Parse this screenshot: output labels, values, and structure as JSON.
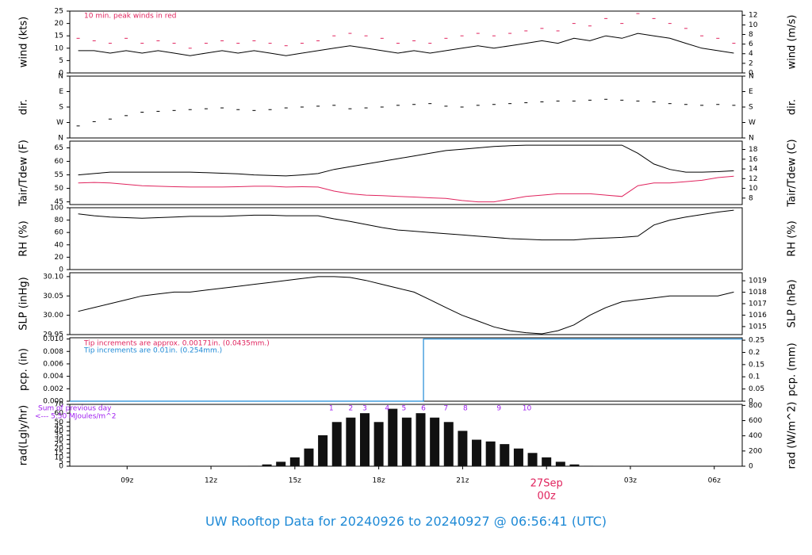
{
  "title": "UW Rooftop Data for 20240926  to  20240927 @ 06:56:41  (UTC)",
  "colors": {
    "red": "#e0245e",
    "blue": "#1f8ad6",
    "purple": "#a020f0",
    "black": "#000000"
  },
  "x_axis": {
    "ticks": [
      "09z",
      "12z",
      "15z",
      "18z",
      "21z",
      "00z",
      "03z",
      "06z"
    ],
    "date_label": "27Sep",
    "date_sub": "00z"
  },
  "chart_data": [
    {
      "type": "line",
      "key": "wind",
      "ylabel": "wind (kts)",
      "ylabel_right": "wind (m/s)",
      "ylim": [
        0,
        25
      ],
      "yticks": [
        0,
        5,
        10,
        15,
        20,
        25
      ],
      "ylim_right": [
        0,
        12.86
      ],
      "yticks_right": [
        0,
        2,
        4,
        6,
        8,
        10,
        12
      ],
      "annotation": "10 min. peak winds in red",
      "series": [
        {
          "name": "",
          "color": "#000000",
          "style": "line",
          "values": [
            9,
            9,
            8,
            9,
            8,
            9,
            8,
            7,
            8,
            9,
            8,
            9,
            8,
            7,
            8,
            9,
            10,
            11,
            10,
            9,
            8,
            9,
            8,
            9,
            10,
            11,
            10,
            11,
            12,
            13,
            12,
            14,
            13,
            15,
            14,
            16,
            15,
            14,
            12,
            10,
            9,
            8
          ]
        },
        {
          "name": "",
          "color": "#e0245e",
          "style": "dash",
          "values": [
            14,
            13,
            12,
            14,
            12,
            13,
            12,
            10,
            12,
            13,
            12,
            13,
            12,
            11,
            12,
            13,
            15,
            16,
            15,
            14,
            12,
            13,
            12,
            14,
            15,
            16,
            15,
            16,
            17,
            18,
            17,
            20,
            19,
            22,
            20,
            24,
            22,
            20,
            18,
            15,
            14,
            12
          ]
        }
      ]
    },
    {
      "type": "scatter",
      "key": "dir",
      "ylabel": "dir.",
      "ylabel_right": "dir.",
      "yticks_labels": [
        "N",
        "E",
        "S",
        "W",
        "N"
      ],
      "ylim": [
        0,
        360
      ],
      "series": [
        {
          "name": "",
          "color": "#000000",
          "style": "dash",
          "values": [
            70,
            95,
            110,
            130,
            150,
            155,
            160,
            165,
            170,
            175,
            165,
            160,
            165,
            175,
            180,
            185,
            190,
            170,
            175,
            180,
            190,
            195,
            200,
            185,
            180,
            190,
            195,
            200,
            205,
            210,
            215,
            215,
            220,
            225,
            220,
            215,
            210,
            200,
            195,
            190,
            195,
            190
          ]
        }
      ]
    },
    {
      "type": "line",
      "key": "temp",
      "ylabel": "Tair/Tdew (F)",
      "ylabel_right": "Tair/Tdew (C)",
      "ylim": [
        44,
        67.5
      ],
      "yticks": [
        45,
        50,
        55,
        60,
        65
      ],
      "ylim_right": [
        6.67,
        19.72
      ],
      "yticks_right": [
        8,
        10,
        12,
        14,
        16,
        18
      ],
      "series": [
        {
          "name": "",
          "color": "#000000",
          "style": "line",
          "values": [
            55,
            55.5,
            56,
            56,
            56,
            56,
            56,
            56,
            55.8,
            55.6,
            55.4,
            55,
            54.8,
            54.6,
            55,
            55.5,
            57,
            58,
            59,
            60,
            61,
            62,
            63,
            64,
            64.5,
            65,
            65.5,
            65.8,
            66,
            66,
            66,
            66,
            66,
            66,
            66,
            63,
            59,
            57,
            56,
            56,
            56.2,
            56.5
          ]
        },
        {
          "name": "",
          "color": "#e0245e",
          "style": "line",
          "values": [
            52,
            52.2,
            52,
            51.5,
            51,
            50.8,
            50.6,
            50.5,
            50.5,
            50.5,
            50.6,
            50.8,
            50.8,
            50.5,
            50.6,
            50.5,
            49,
            48,
            47.5,
            47.3,
            47,
            46.8,
            46.5,
            46.3,
            45.5,
            45,
            45,
            46,
            47,
            47.5,
            48,
            48,
            48,
            47.5,
            47,
            51,
            52,
            52,
            52.5,
            53,
            54,
            54.5
          ]
        }
      ]
    },
    {
      "type": "line",
      "key": "rh",
      "ylabel": "RH (%)",
      "ylabel_right": "RH (%)",
      "ylim": [
        0,
        100
      ],
      "yticks": [
        0,
        20,
        40,
        60,
        80,
        100
      ],
      "series": [
        {
          "name": "",
          "color": "#000000",
          "style": "line",
          "values": [
            90,
            87,
            85,
            84,
            83,
            84,
            85,
            86,
            86,
            86,
            87,
            88,
            88,
            87,
            87,
            87,
            82,
            78,
            73,
            68,
            64,
            62,
            60,
            58,
            56,
            54,
            52,
            50,
            49,
            48,
            48,
            48,
            50,
            51,
            52,
            54,
            72,
            80,
            85,
            89,
            93,
            96
          ]
        }
      ]
    },
    {
      "type": "line",
      "key": "slp",
      "ylabel": "SLP (inHg)",
      "ylabel_right": "SLP (hPa)",
      "ylim": [
        29.95,
        30.11
      ],
      "yticks": [
        29.95,
        30.0,
        30.05,
        30.1
      ],
      "ytick_labels": [
        "29.95",
        "30.00",
        "30.05",
        "30.10"
      ],
      "ylim_right": [
        1014.3,
        1019.7
      ],
      "yticks_right": [
        1015,
        1016,
        1017,
        1018,
        1019
      ],
      "series": [
        {
          "name": "",
          "color": "#000000",
          "style": "line",
          "values": [
            30.01,
            30.02,
            30.03,
            30.04,
            30.05,
            30.055,
            30.06,
            30.06,
            30.065,
            30.07,
            30.075,
            30.08,
            30.085,
            30.09,
            30.095,
            30.1,
            30.1,
            30.098,
            30.09,
            30.08,
            30.07,
            30.06,
            30.04,
            30.02,
            30.0,
            29.985,
            29.97,
            29.96,
            29.955,
            29.952,
            29.96,
            29.975,
            30.0,
            30.02,
            30.035,
            30.04,
            30.045,
            30.05,
            30.05,
            30.05,
            30.05,
            30.06
          ]
        }
      ]
    },
    {
      "type": "line",
      "key": "pcp",
      "ylabel": "pcp. (in)",
      "ylabel_right": "pcp. (mm)",
      "ylim": [
        0,
        0.0102
      ],
      "yticks": [
        0,
        0.002,
        0.004,
        0.006,
        0.008,
        0.01
      ],
      "ytick_labels": [
        "0.000",
        "0.002",
        "0.004",
        "0.006",
        "0.008",
        "0.010"
      ],
      "ylim_right": [
        0,
        0.26
      ],
      "yticks_right": [
        0,
        0.05,
        0.1,
        0.15,
        0.2,
        0.25
      ],
      "ytick_labels_right": [
        "0",
        "0.05",
        "0.1",
        "0.15",
        "0.2",
        "0.25"
      ],
      "step_at_hour": 19.6,
      "before": 0,
      "after": 0.01,
      "annotations": [
        {
          "text": "Tip increments are approx. 0.00171in. (0.0435mm.)",
          "color": "#e0245e"
        },
        {
          "text": "Tip increments are 0.01in. (0.254mm.)",
          "color": "#1f8ad6"
        }
      ]
    },
    {
      "type": "bar",
      "key": "rad",
      "ylabel": "rad(Lgly/hr)",
      "ylabel_right": "rad (W/m^2)",
      "ylim": [
        0,
        70
      ],
      "yticks": [
        0,
        5,
        10,
        15,
        20,
        25,
        30,
        35,
        40,
        45,
        50,
        60,
        70
      ],
      "ylim_right": [
        0,
        813.9
      ],
      "yticks_right": [
        0,
        200,
        400,
        600,
        800
      ],
      "annotation_lines": [
        "Sum of previous day",
        "<--- 5.50 MJoules/m^2"
      ],
      "markers": [
        {
          "label": "1",
          "hour": 16.3
        },
        {
          "label": "2",
          "hour": 17.0
        },
        {
          "label": "3",
          "hour": 17.5
        },
        {
          "label": "4",
          "hour": 18.3
        },
        {
          "label": "5",
          "hour": 18.9
        },
        {
          "label": "6",
          "hour": 19.6
        },
        {
          "label": "7",
          "hour": 20.4
        },
        {
          "label": "8",
          "hour": 21.1
        },
        {
          "label": "9",
          "hour": 22.3
        },
        {
          "label": "10",
          "hour": 23.3
        }
      ],
      "hours": [
        13.5,
        14.0,
        14.5,
        15.0,
        15.5,
        16.0,
        16.5,
        17.0,
        17.5,
        18.0,
        18.5,
        19.0,
        19.5,
        20.0,
        20.5,
        21.0,
        21.5,
        22.0,
        22.5,
        23.0,
        23.5,
        24.0,
        24.5,
        25.0,
        25.5
      ],
      "values": [
        0.5,
        2,
        5,
        10,
        20,
        35,
        50,
        55,
        60,
        50,
        65,
        55,
        60,
        55,
        50,
        40,
        30,
        28,
        25,
        20,
        15,
        10,
        5,
        2,
        0.5
      ]
    }
  ]
}
